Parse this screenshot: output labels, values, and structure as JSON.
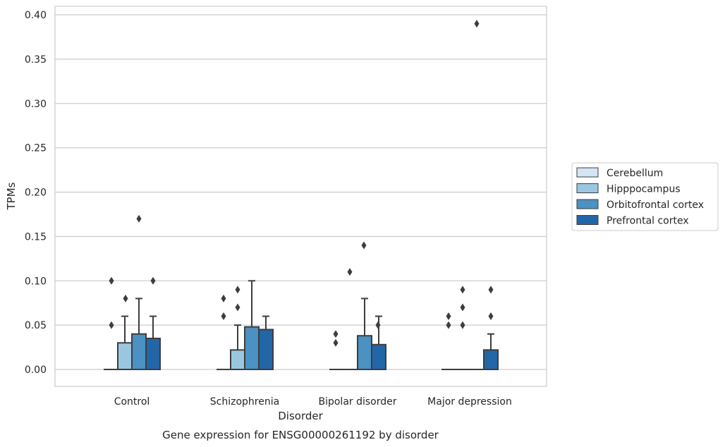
{
  "chart_data": {
    "type": "box",
    "title": "Gene expression for ENSG00000261192 by disorder",
    "xlabel": "Disorder",
    "ylabel": "TPMs",
    "ylim": [
      -0.019,
      0.41
    ],
    "yticks": [
      "0.00",
      "0.05",
      "0.10",
      "0.15",
      "0.20",
      "0.25",
      "0.30",
      "0.35",
      "0.40"
    ],
    "grid": "horizontal",
    "legend_position": "right",
    "categories": [
      "Control",
      "Schizophrenia",
      "Bipolar disorder",
      "Major depression"
    ],
    "series": [
      {
        "name": "Cerebellum",
        "color": "#d3e4f3",
        "boxes": [
          {
            "q1": 0,
            "median": 0,
            "q3": 0,
            "whisker_low": 0,
            "whisker_high": 0,
            "outliers": []
          },
          {
            "q1": 0,
            "median": 0,
            "q3": 0,
            "whisker_low": 0,
            "whisker_high": 0,
            "outliers": []
          },
          {
            "q1": 0,
            "median": 0,
            "q3": 0,
            "whisker_low": 0,
            "whisker_high": 0,
            "outliers": []
          },
          {
            "q1": 0,
            "median": 0,
            "q3": 0,
            "whisker_low": 0,
            "whisker_high": 0,
            "outliers": []
          }
        ]
      },
      {
        "name": "Hipppocampus",
        "color": "#9ac7e0",
        "boxes": [
          {
            "q1": 0,
            "median": 0,
            "q3": 0.03,
            "whisker_low": 0,
            "whisker_high": 0.06,
            "outliers": [
              0.05,
              0.1
            ]
          },
          {
            "q1": 0,
            "median": 0,
            "q3": 0.022,
            "whisker_low": 0,
            "whisker_high": 0.05,
            "outliers": [
              0.06,
              0.08
            ]
          },
          {
            "q1": 0,
            "median": 0,
            "q3": 0,
            "whisker_low": 0,
            "whisker_high": 0,
            "outliers": [
              0.03,
              0.04
            ]
          },
          {
            "q1": 0,
            "median": 0,
            "q3": 0,
            "whisker_low": 0,
            "whisker_high": 0,
            "outliers": [
              0.05,
              0.06
            ]
          }
        ]
      },
      {
        "name": "Orbitofrontal cortex",
        "color": "#4b91c2",
        "boxes": [
          {
            "q1": 0,
            "median": 0,
            "q3": 0.04,
            "whisker_low": 0,
            "whisker_high": 0.08,
            "outliers": [
              0.08
            ]
          },
          {
            "q1": 0,
            "median": 0,
            "q3": 0.048,
            "whisker_low": 0,
            "whisker_high": 0.1,
            "outliers": [
              0.07,
              0.09
            ]
          },
          {
            "q1": 0,
            "median": 0,
            "q3": 0.038,
            "whisker_low": 0,
            "whisker_high": 0.08,
            "outliers": [
              0.11
            ]
          },
          {
            "q1": 0,
            "median": 0,
            "q3": 0,
            "whisker_low": 0,
            "whisker_high": 0,
            "outliers": [
              0.05,
              0.07,
              0.09
            ]
          }
        ]
      },
      {
        "name": "Prefrontal cortex",
        "color": "#2366a8",
        "boxes": [
          {
            "q1": 0,
            "median": 0,
            "q3": 0.035,
            "whisker_low": 0,
            "whisker_high": 0.06,
            "outliers": [
              0.17
            ]
          },
          {
            "q1": 0,
            "median": 0,
            "q3": 0.045,
            "whisker_low": 0,
            "whisker_high": 0.06,
            "outliers": []
          },
          {
            "q1": 0,
            "median": 0,
            "q3": 0.028,
            "whisker_low": 0,
            "whisker_high": 0.06,
            "outliers": [
              0.14
            ]
          },
          {
            "q1": 0,
            "median": 0,
            "q3": 0.03,
            "whisker_low": 0,
            "whisker_high": 0.07,
            "outliers": [
              0.39
            ]
          }
        ]
      }
    ],
    "extra_boxes_note": "",
    "major_depression_prefrontal_second": {
      "q1": 0,
      "median": 0,
      "q3": 0.022,
      "whisker_low": 0,
      "whisker_high": 0.04,
      "outliers": [
        0.06,
        0.09
      ]
    },
    "right_outliers": [
      [
        0.1
      ],
      [],
      [
        0.05
      ],
      []
    ]
  }
}
